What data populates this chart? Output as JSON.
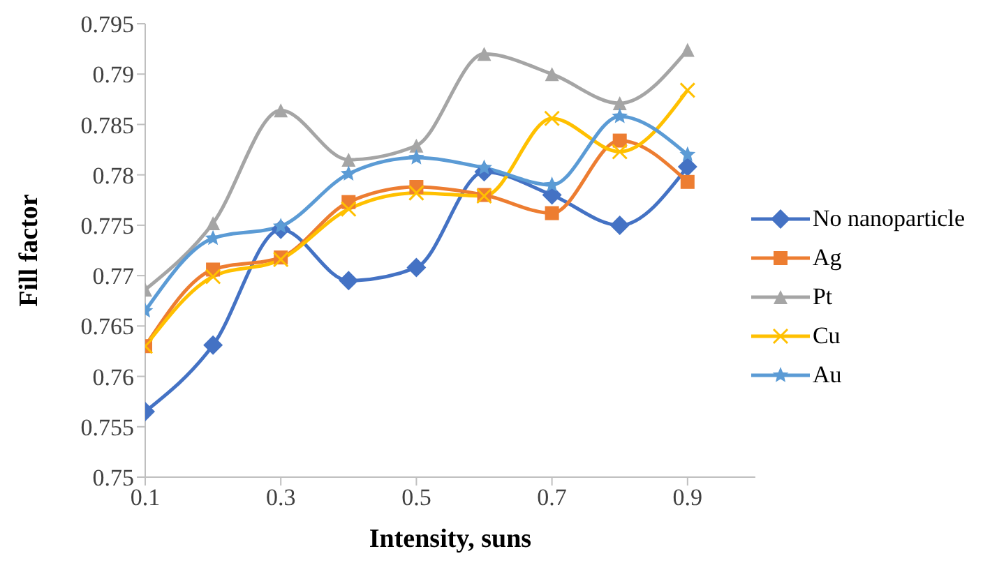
{
  "chart_data": {
    "type": "line",
    "xlabel": "Intensity, suns",
    "ylabel": "Fill factor",
    "x": [
      0.1,
      0.2,
      0.3,
      0.4,
      0.5,
      0.6,
      0.7,
      0.8,
      0.9
    ],
    "xlim": [
      0.1,
      1.0
    ],
    "xticks": [
      0.1,
      0.3,
      0.5,
      0.7,
      0.9
    ],
    "ylim": [
      0.75,
      0.795
    ],
    "yticks": [
      0.75,
      0.755,
      0.76,
      0.765,
      0.77,
      0.775,
      0.78,
      0.785,
      0.79,
      0.795
    ],
    "grid": false,
    "legend": "right",
    "line_style": "solid",
    "series": [
      {
        "name": "No nanoparticle",
        "color": "#4472c4",
        "marker": "diamond",
        "values": [
          0.7565,
          0.7631,
          0.7746,
          0.7695,
          0.7708,
          0.7803,
          0.778,
          0.775,
          0.7808
        ]
      },
      {
        "name": "Ag",
        "color": "#ed7d31",
        "marker": "square",
        "values": [
          0.763,
          0.7706,
          0.7718,
          0.7773,
          0.7788,
          0.778,
          0.7762,
          0.7834,
          0.7793
        ]
      },
      {
        "name": "Pt",
        "color": "#a5a5a5",
        "marker": "triangle",
        "values": [
          0.7686,
          0.7752,
          0.7864,
          0.7815,
          0.7829,
          0.792,
          0.79,
          0.7871,
          0.7924
        ]
      },
      {
        "name": "Cu",
        "color": "#ffc000",
        "marker": "cross",
        "values": [
          0.763,
          0.7699,
          0.7716,
          0.7766,
          0.7782,
          0.7779,
          0.7856,
          0.7823,
          0.7884
        ]
      },
      {
        "name": "Au",
        "color": "#5b9bd5",
        "marker": "star",
        "values": [
          0.7665,
          0.7737,
          0.7749,
          0.7801,
          0.7817,
          0.7807,
          0.779,
          0.7858,
          0.782
        ]
      }
    ]
  }
}
